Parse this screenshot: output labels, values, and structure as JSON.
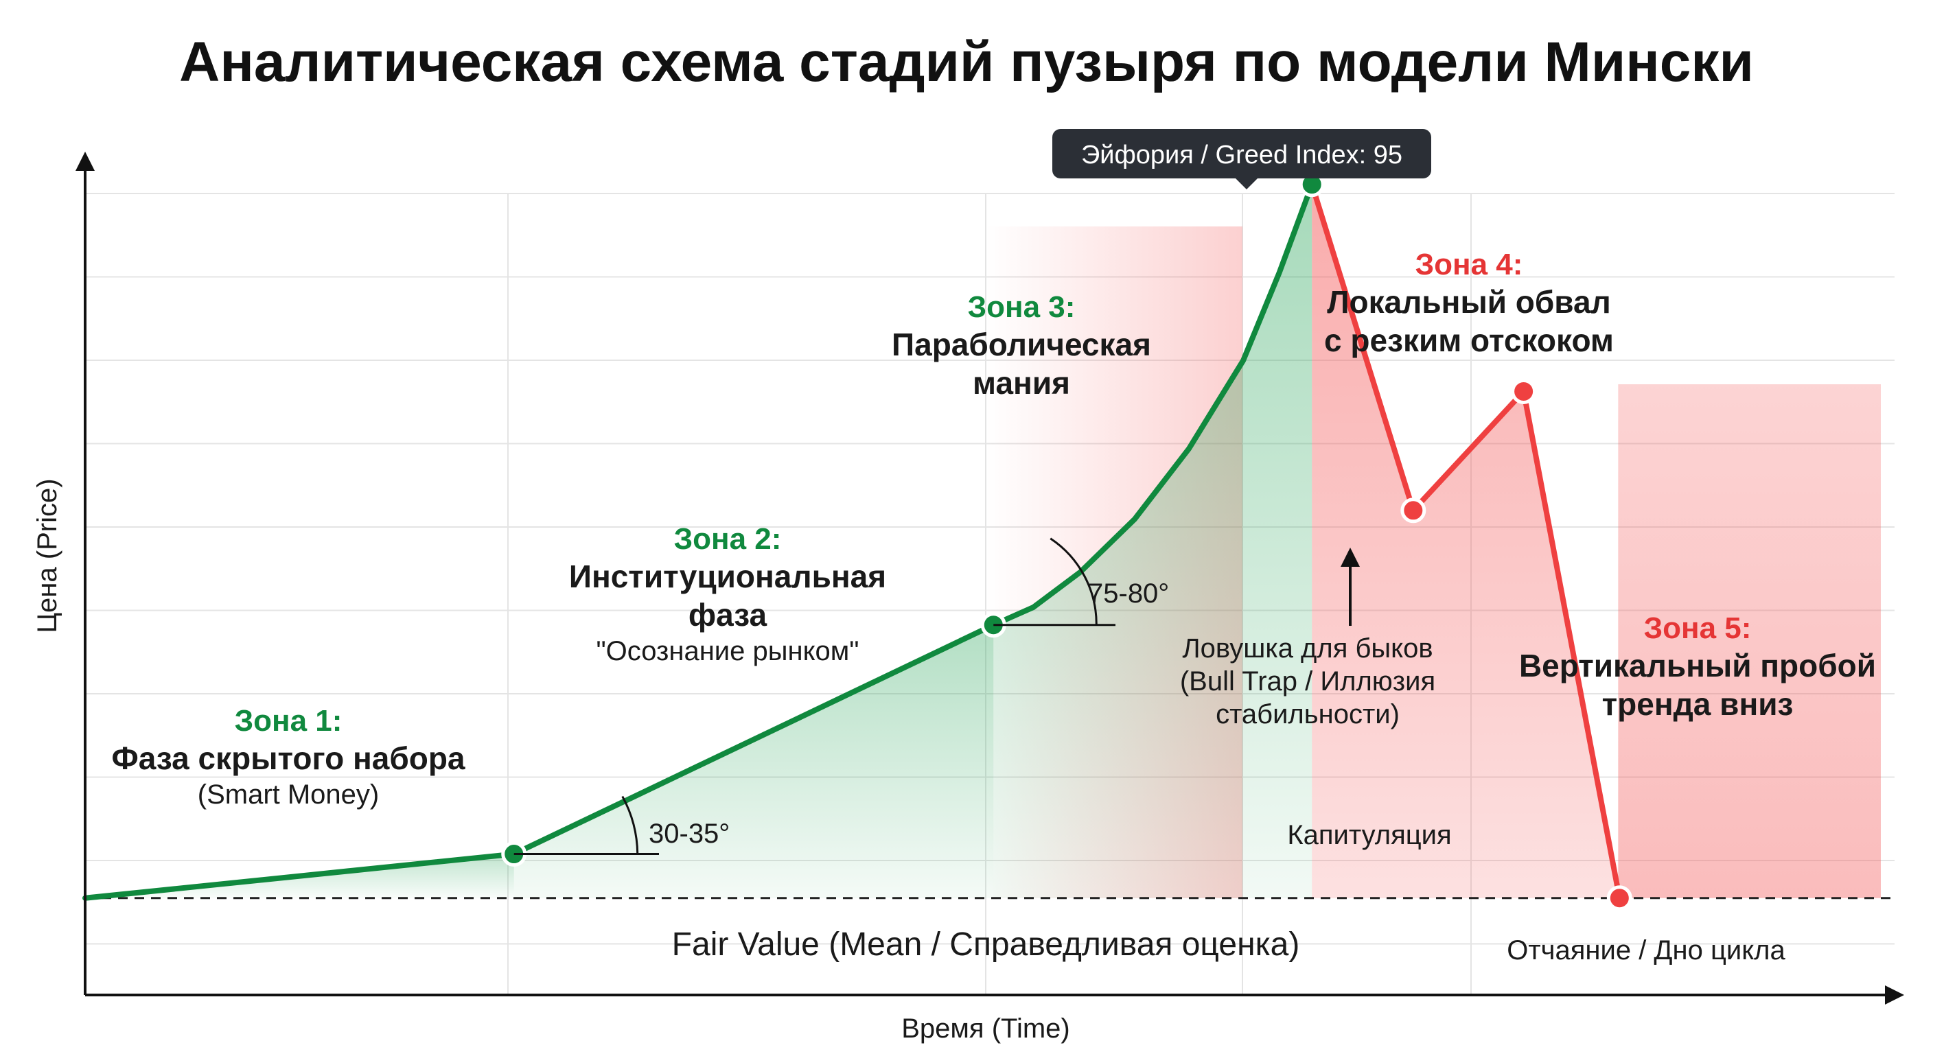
{
  "chart_data": {
    "type": "line",
    "title": "Аналитическая схема стадий пузыря по модели Мински",
    "xlabel": "Время (Time)",
    "ylabel": "Цена (Price)",
    "xlim": [
      0,
      100
    ],
    "ylim": [
      0,
      100
    ],
    "grid": true,
    "fair_value": 11,
    "fair_value_label": "Fair Value (Mean / Справедливая оценка)",
    "rise_series": [
      [
        0,
        11
      ],
      [
        23.7,
        16
      ],
      [
        50.2,
        42
      ],
      [
        52.4,
        44
      ],
      [
        55,
        48
      ],
      [
        58,
        54
      ],
      [
        61,
        62
      ],
      [
        64,
        72
      ],
      [
        66,
        82
      ],
      [
        67.8,
        92
      ]
    ],
    "fall_series": [
      [
        67.8,
        92
      ],
      [
        73.4,
        55
      ],
      [
        79.5,
        68.5
      ],
      [
        84.8,
        11
      ]
    ],
    "key_points": [
      {
        "x": 23.7,
        "y": 16,
        "color": "#10893e"
      },
      {
        "x": 50.2,
        "y": 42,
        "color": "#10893e"
      },
      {
        "x": 67.8,
        "y": 92,
        "color": "#10893e"
      },
      {
        "x": 73.4,
        "y": 55,
        "color": "#ef4040"
      },
      {
        "x": 79.5,
        "y": 68.5,
        "color": "#ef4040"
      },
      {
        "x": 84.8,
        "y": 11,
        "color": "#ef4040"
      }
    ],
    "angles": [
      {
        "label": "30-35°",
        "x": 23.7,
        "y": 16
      },
      {
        "label": "75-80°",
        "x": 50.2,
        "y": 42
      }
    ],
    "zones": [
      {
        "head": "Зона 1:",
        "name_lines": [
          "Фаза скрытого набора"
        ],
        "sub_lines": [
          "(Smart Money)"
        ],
        "color": "#10893e"
      },
      {
        "head": "Зона 2:",
        "name_lines": [
          "Институциональная",
          "фаза"
        ],
        "sub_lines": [
          "\"Осознание рынком\""
        ],
        "color": "#10893e"
      },
      {
        "head": "Зона 3:",
        "name_lines": [
          "Параболическая",
          "мания"
        ],
        "sub_lines": [],
        "color": "#10893e"
      },
      {
        "head": "Зона 4:",
        "name_lines": [
          "Локальный обвал",
          "с резким отскоком"
        ],
        "sub_lines": [],
        "color": "#e53535"
      },
      {
        "head": "Зона 5:",
        "name_lines": [
          "Вертикальный пробой",
          "тренда вниз"
        ],
        "sub_lines": [],
        "color": "#e53535"
      }
    ],
    "annotations": {
      "peak": "Эйфория / Greed Index: 95",
      "bull_trap": [
        "Ловушка для быков",
        "(Bull Trap / Иллюзия",
        "стабильности)"
      ],
      "capitulation": "Капитуляция",
      "bottom": "Отчаяние / Дно цикла"
    },
    "colors": {
      "green": "#10893e",
      "red": "#ef4040",
      "green_fill": "#2aa55a",
      "red_fill": "#f35858",
      "tooltip_bg": "#2b2f36"
    }
  }
}
